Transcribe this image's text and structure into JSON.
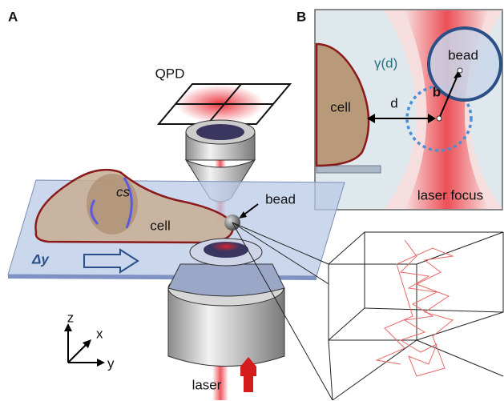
{
  "panel_a": {
    "label": "A",
    "qpd": "QPD",
    "bead": "bead",
    "cell": "cell",
    "coverslip": "cs",
    "shift": "Δy",
    "axis_z": "z",
    "axis_x": "x",
    "axis_y": "y",
    "laser": "laser"
  },
  "panel_b": {
    "label": "B",
    "bead": "bead",
    "displacement": "b",
    "friction": "γ(d)",
    "cell": "cell",
    "distance": "d",
    "focus": "laser focus"
  }
}
